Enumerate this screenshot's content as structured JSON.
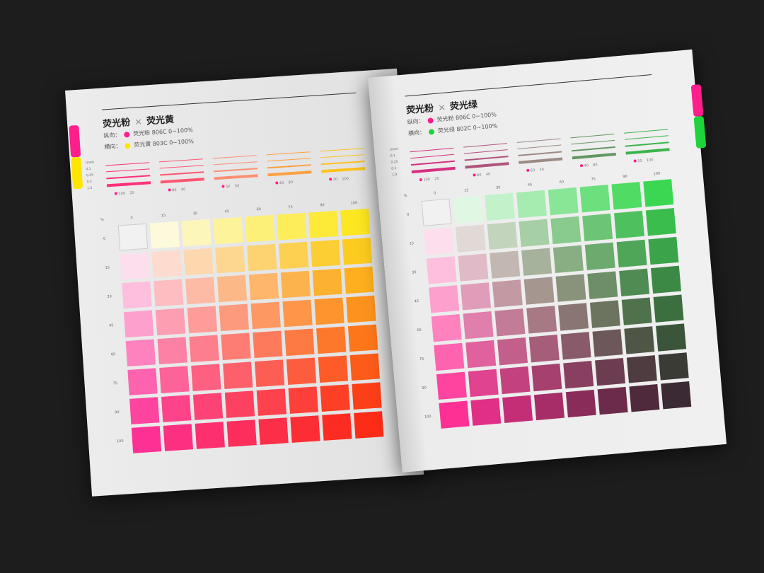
{
  "pages": [
    {
      "title_a": "荧光粉",
      "title_x": "×",
      "title_b": "荧光黄",
      "vertical_label": "纵向：",
      "vertical_ink": "荧光粉  806C  0~100%",
      "horizontal_label": "横向：",
      "horizontal_ink": "荧光黄  803C  0~100%",
      "ink_a": "#ff1e8c",
      "ink_b": "#ffe600",
      "line_widths": [
        "(mm)",
        "0.1",
        "0.25",
        "0.5",
        "1.0"
      ],
      "line_pairs": [
        [
          "100",
          "20"
        ],
        [
          "80",
          "40"
        ],
        [
          "50",
          "50"
        ],
        [
          "40",
          "80"
        ],
        [
          "20",
          "100"
        ]
      ],
      "col_header": [
        "0",
        "15",
        "30",
        "45",
        "60",
        "75",
        "90",
        "100"
      ],
      "row_header": [
        "0",
        "15",
        "30",
        "45",
        "60",
        "75",
        "90",
        "100"
      ],
      "row_axis_label": "%"
    },
    {
      "title_a": "荧光粉",
      "title_x": "×",
      "title_b": "荧光绿",
      "vertical_label": "纵向：",
      "vertical_ink": "荧光粉  806C  0~100%",
      "horizontal_label": "横向：",
      "horizontal_ink": "荧光绿  802C  0~100%",
      "ink_a": "#ff1e8c",
      "ink_b": "#1fd33a",
      "line_widths": [
        "(mm)",
        "0.1",
        "0.25",
        "0.5",
        "1.0"
      ],
      "line_pairs": [
        [
          "100",
          "20"
        ],
        [
          "80",
          "40"
        ],
        [
          "50",
          "50"
        ],
        [
          "40",
          "80"
        ],
        [
          "20",
          "100"
        ]
      ],
      "col_header": [
        "0",
        "15",
        "30",
        "45",
        "60",
        "75",
        "90",
        "100"
      ],
      "row_header": [
        "0",
        "15",
        "30",
        "45",
        "60",
        "75",
        "90",
        "100"
      ],
      "row_axis_label": "%"
    }
  ]
}
